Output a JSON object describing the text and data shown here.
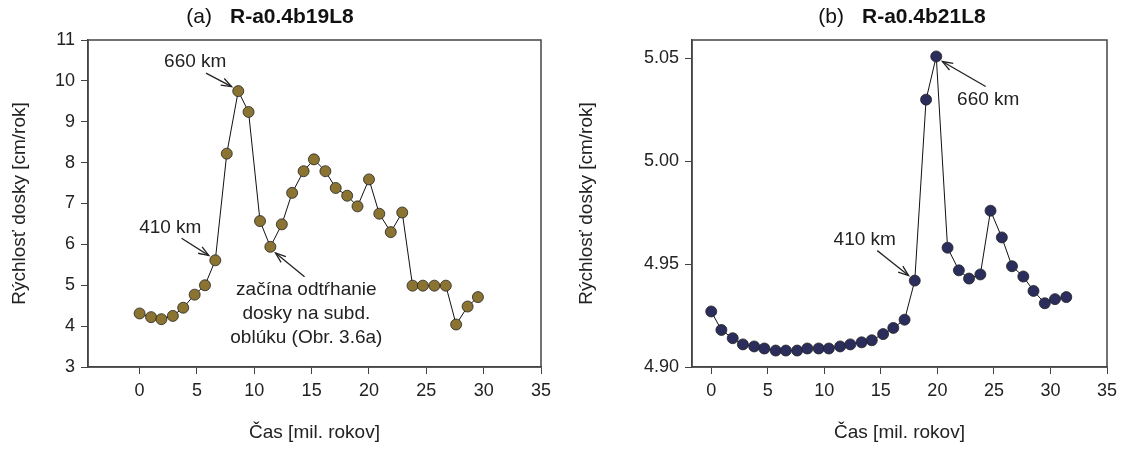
{
  "chart_data": [
    {
      "type": "line",
      "title": "(a) R-a0.4b19L8",
      "xlabel": "Čas [mil. rokov]",
      "ylabel": "Rýchlosť dosky [cm/rok]",
      "x": [
        0,
        1.0,
        1.9,
        2.9,
        3.8,
        4.8,
        5.7,
        6.6,
        7.6,
        8.6,
        9.5,
        10.5,
        11.4,
        12.4,
        13.3,
        14.3,
        15.2,
        16.2,
        17.1,
        18.1,
        19.0,
        20.0,
        20.9,
        21.9,
        22.9,
        23.8,
        24.7,
        25.7,
        26.7,
        27.6,
        28.6,
        29.5
      ],
      "series": [
        {
          "color": "#8b7432",
          "values": [
            4.31,
            4.22,
            4.17,
            4.25,
            4.45,
            4.77,
            5.0,
            5.61,
            8.22,
            9.75,
            9.24,
            6.57,
            5.94,
            6.49,
            7.26,
            7.79,
            8.08,
            7.79,
            7.38,
            7.19,
            6.93,
            7.59,
            6.75,
            6.3,
            6.78,
            4.99,
            4.99,
            4.99,
            4.99,
            4.04,
            4.48,
            4.71
          ]
        }
      ],
      "xlim": [
        -4.5,
        35
      ],
      "xticks": [
        0,
        5,
        10,
        15,
        20,
        25,
        30,
        35
      ],
      "ylim": [
        3,
        11
      ],
      "yticks": [
        3,
        4,
        5,
        6,
        7,
        8,
        9,
        10,
        11
      ],
      "grid": false,
      "legend": false,
      "marker": "circle",
      "line_style": "solid",
      "annotations": [
        {
          "text": "660 km",
          "x": 8.6,
          "y": 9.75
        },
        {
          "text": "410 km",
          "x": 6.6,
          "y": 5.61
        },
        {
          "text": "začína odtŕhanie dosky na subd. oblúku (Obr. 3.6a)",
          "x": 11.4,
          "y": 5.94
        }
      ]
    },
    {
      "type": "line",
      "title": "(b) R-a0.4b21L8",
      "xlabel": "Čas [mil. rokov]",
      "ylabel": "Rýchlosť dosky [cm/rok]",
      "x": [
        0,
        0.9,
        1.9,
        2.8,
        3.8,
        4.7,
        5.7,
        6.6,
        7.6,
        8.5,
        9.5,
        10.4,
        11.4,
        12.3,
        13.3,
        14.2,
        15.2,
        16.1,
        17.1,
        18.0,
        19.0,
        19.9,
        20.9,
        21.9,
        22.8,
        23.8,
        24.7,
        25.7,
        26.6,
        27.6,
        28.5,
        29.5,
        30.4,
        31.4
      ],
      "series": [
        {
          "color": "#2b2d5c",
          "values": [
            4.927,
            4.918,
            4.914,
            4.911,
            4.91,
            4.909,
            4.908,
            4.908,
            4.908,
            4.909,
            4.909,
            4.909,
            4.91,
            4.911,
            4.912,
            4.913,
            4.916,
            4.919,
            4.923,
            4.942,
            5.03,
            5.051,
            4.958,
            4.947,
            4.943,
            4.945,
            4.976,
            4.963,
            4.949,
            4.944,
            4.937,
            4.931,
            4.933,
            4.934
          ]
        }
      ],
      "xlim": [
        -1.7,
        35
      ],
      "xticks": [
        0,
        5,
        10,
        15,
        20,
        25,
        30,
        35
      ],
      "ylim": [
        4.9,
        5.059
      ],
      "yticks": [
        {
          "value": 4.9,
          "label": "4.90"
        },
        {
          "value": 4.95,
          "label": "4.95"
        },
        {
          "value": 5.0,
          "label": "5.00"
        },
        {
          "value": 5.05,
          "label": "5.05"
        }
      ],
      "grid": false,
      "legend": false,
      "marker": "circle",
      "line_style": "solid",
      "annotations": [
        {
          "text": "660 km",
          "x": 19.9,
          "y": 5.051
        },
        {
          "text": "410 km",
          "x": 18.0,
          "y": 4.942
        }
      ]
    }
  ]
}
